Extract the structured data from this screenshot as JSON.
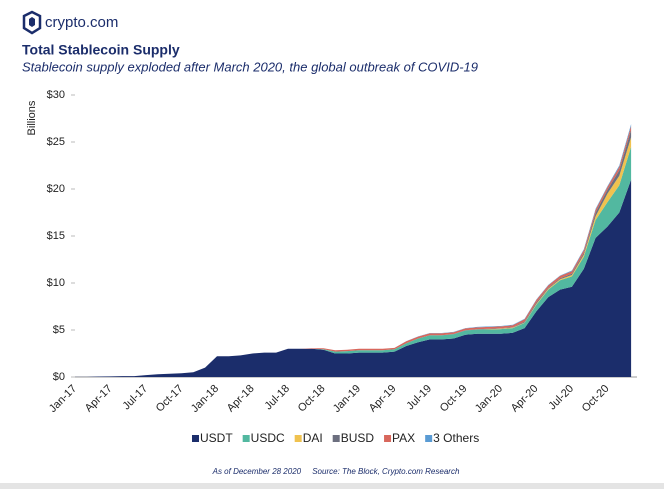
{
  "brand": "crypto.com",
  "chart_data": {
    "type": "stacked_area",
    "title": "Total Stablecoin Supply",
    "subtitle": "Stablecoin supply exploded after March 2020, the global outbreak of COVID-19",
    "y_label": "Billions",
    "footer": "As of December 28 2020     Source: The Block, Crypto.com Research",
    "categories": [
      "Jan-17",
      null,
      null,
      "Apr-17",
      null,
      null,
      "Jul-17",
      null,
      null,
      "Oct-17",
      null,
      null,
      "Jan-18",
      null,
      null,
      "Apr-18",
      null,
      null,
      "Jul-18",
      null,
      null,
      "Oct-18",
      null,
      null,
      "Jan-19",
      null,
      null,
      "Apr-19",
      null,
      null,
      "Jul-19",
      null,
      null,
      "Oct-19",
      null,
      null,
      "Jan-20",
      null,
      null,
      "Apr-20",
      null,
      null,
      "Jul-20",
      null,
      null,
      "Oct-20",
      null,
      null
    ],
    "ylim": [
      0,
      30
    ],
    "yticks": [
      {
        "value": 0,
        "label": "$0"
      },
      {
        "value": 5,
        "label": "$5"
      },
      {
        "value": 10,
        "label": "$10"
      },
      {
        "value": 15,
        "label": "$15"
      },
      {
        "value": 20,
        "label": "$20"
      },
      {
        "value": 25,
        "label": "$25"
      },
      {
        "value": 30,
        "label": "$30"
      }
    ],
    "legend": "bottom",
    "series": [
      {
        "name": "USDT",
        "color": "#1b2d6b",
        "values": [
          0.01,
          0.01,
          0.05,
          0.06,
          0.1,
          0.1,
          0.2,
          0.3,
          0.35,
          0.4,
          0.5,
          1.0,
          2.2,
          2.2,
          2.3,
          2.5,
          2.6,
          2.6,
          3.0,
          3.0,
          3.0,
          2.9,
          2.5,
          2.5,
          2.6,
          2.6,
          2.6,
          2.7,
          3.3,
          3.7,
          4.0,
          4.0,
          4.1,
          4.5,
          4.6,
          4.6,
          4.6,
          4.7,
          5.2,
          7.0,
          8.5,
          9.3,
          9.6,
          11.5,
          14.8,
          16.0,
          17.5,
          21.0
        ]
      },
      {
        "name": "USDC",
        "color": "#52b8a0",
        "values": [
          0,
          0,
          0,
          0,
          0,
          0,
          0,
          0,
          0,
          0,
          0,
          0,
          0,
          0,
          0,
          0,
          0,
          0,
          0,
          0,
          0,
          0.05,
          0.2,
          0.25,
          0.25,
          0.25,
          0.25,
          0.25,
          0.3,
          0.4,
          0.45,
          0.45,
          0.45,
          0.45,
          0.45,
          0.45,
          0.5,
          0.5,
          0.55,
          0.7,
          0.8,
          1.0,
          1.1,
          1.3,
          1.9,
          2.6,
          2.9,
          3.5
        ]
      },
      {
        "name": "DAI",
        "color": "#f0c24f",
        "values": [
          0,
          0,
          0,
          0,
          0,
          0,
          0,
          0,
          0,
          0,
          0,
          0,
          0,
          0,
          0,
          0,
          0,
          0,
          0,
          0,
          0,
          0,
          0,
          0,
          0,
          0,
          0,
          0,
          0,
          0,
          0,
          0,
          0,
          0,
          0,
          0.05,
          0.05,
          0.05,
          0.05,
          0.1,
          0.1,
          0.1,
          0.15,
          0.2,
          0.4,
          0.9,
          1.0,
          1.0
        ]
      },
      {
        "name": "BUSD",
        "color": "#6c6f7f",
        "values": [
          0,
          0,
          0,
          0,
          0,
          0,
          0,
          0,
          0,
          0,
          0,
          0,
          0,
          0,
          0,
          0,
          0,
          0,
          0,
          0,
          0,
          0,
          0,
          0,
          0,
          0,
          0,
          0,
          0,
          0,
          0,
          0,
          0.02,
          0.02,
          0.03,
          0.03,
          0.03,
          0.05,
          0.1,
          0.15,
          0.1,
          0.1,
          0.15,
          0.2,
          0.4,
          0.4,
          0.6,
          0.8
        ]
      },
      {
        "name": "PAX",
        "color": "#d8675c",
        "values": [
          0,
          0,
          0,
          0,
          0,
          0,
          0,
          0,
          0,
          0,
          0,
          0,
          0,
          0,
          0,
          0,
          0,
          0,
          0,
          0,
          0.05,
          0.1,
          0.15,
          0.15,
          0.15,
          0.15,
          0.15,
          0.15,
          0.2,
          0.2,
          0.2,
          0.2,
          0.2,
          0.2,
          0.2,
          0.2,
          0.2,
          0.2,
          0.25,
          0.25,
          0.25,
          0.25,
          0.25,
          0.3,
          0.3,
          0.3,
          0.35,
          0.4
        ]
      },
      {
        "name": "3 Others",
        "color": "#5a9bd4",
        "values": [
          0,
          0,
          0,
          0,
          0,
          0,
          0,
          0,
          0,
          0,
          0,
          0,
          0,
          0,
          0,
          0,
          0,
          0,
          0,
          0,
          0,
          0,
          0,
          0,
          0,
          0,
          0,
          0,
          0.02,
          0.02,
          0.03,
          0.03,
          0.03,
          0.03,
          0.05,
          0.05,
          0.05,
          0.05,
          0.05,
          0.05,
          0.05,
          0.05,
          0.08,
          0.1,
          0.1,
          0.1,
          0.15,
          0.2
        ]
      }
    ]
  }
}
